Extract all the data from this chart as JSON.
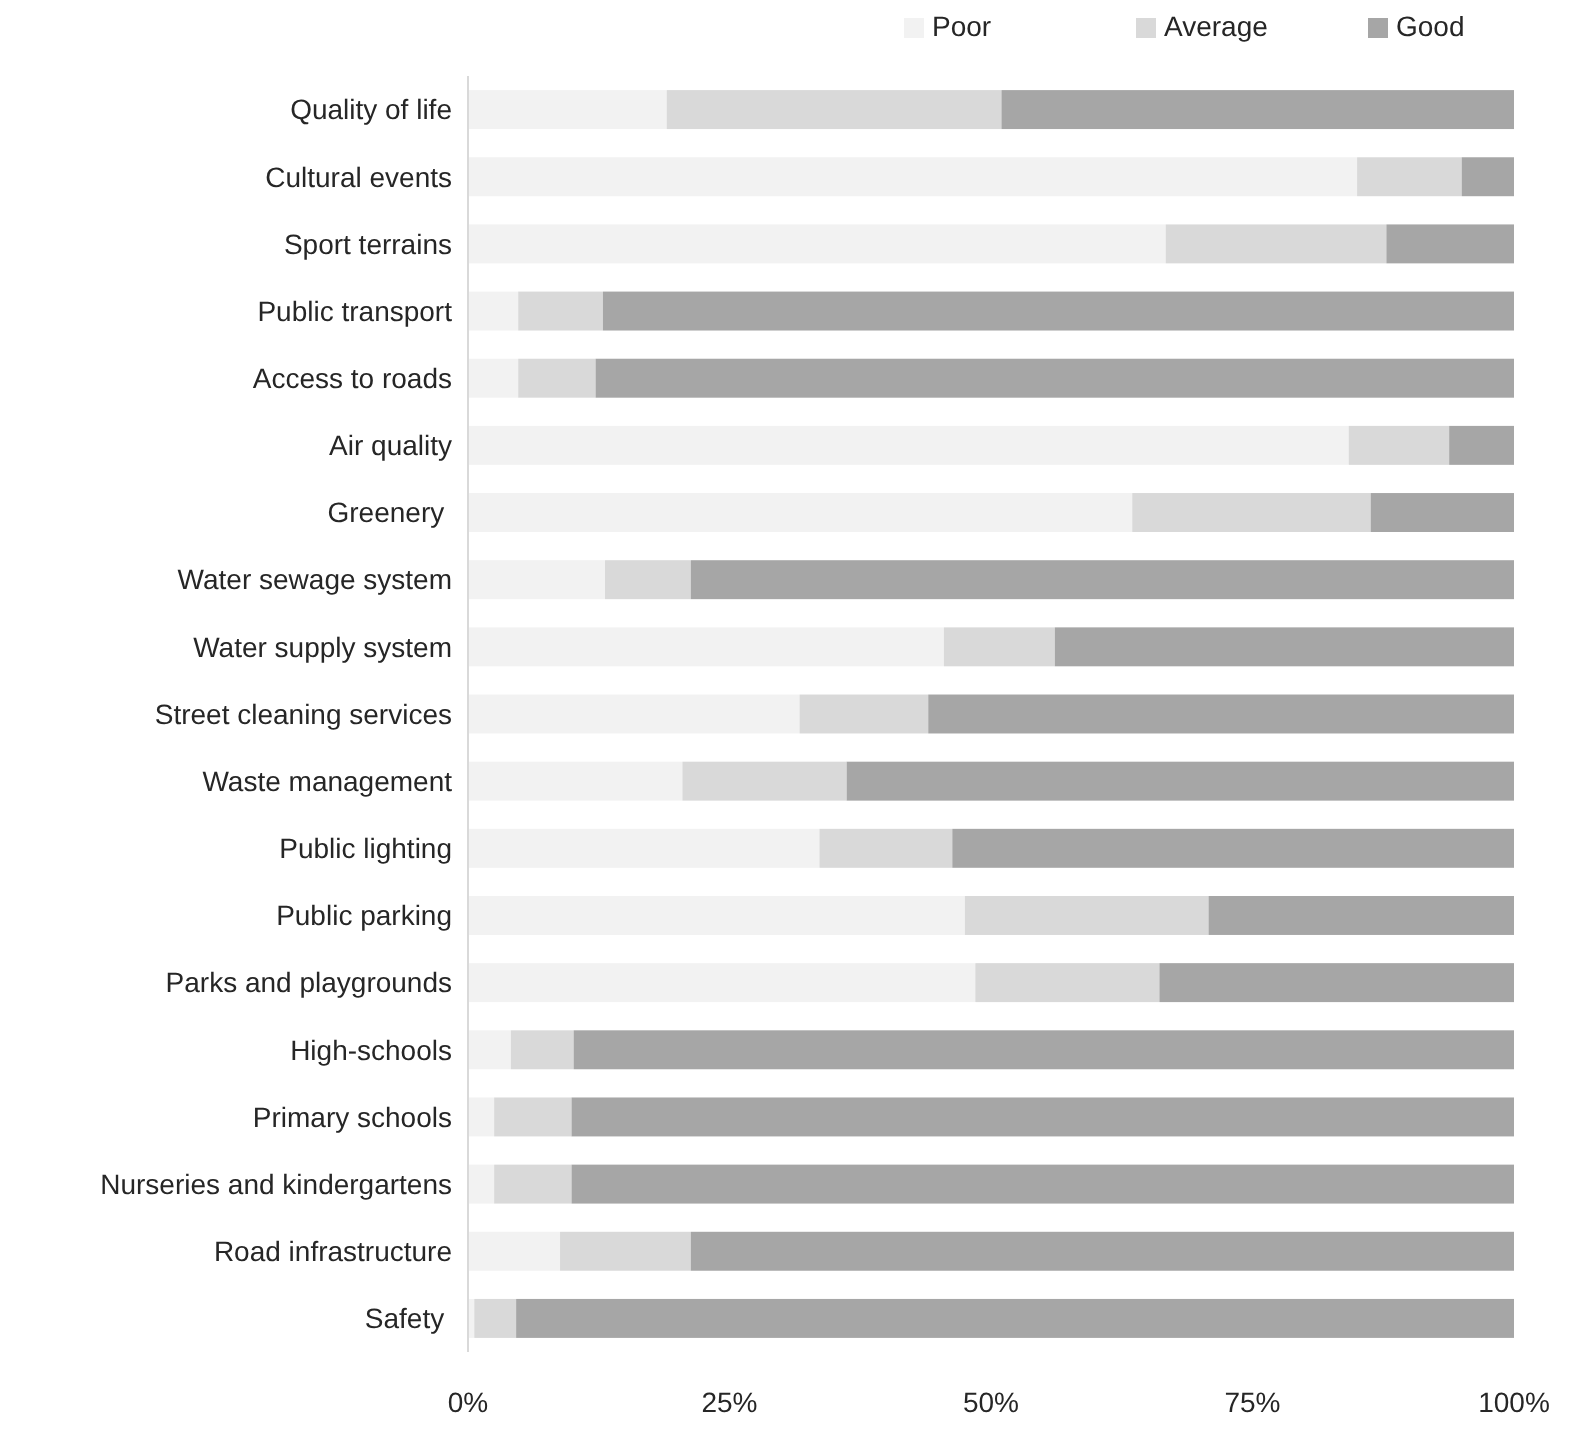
{
  "chart_data": {
    "type": "bar",
    "orientation": "horizontal",
    "stacked": true,
    "categories": [
      "Quality of life",
      "Cultural events",
      "Sport terrains",
      "Public transport",
      "Access to roads",
      "Air quality",
      "Greenery ",
      "Water sewage system",
      "Water supply system",
      "Street cleaning services",
      "Waste management",
      "Public lighting",
      "Public parking",
      "Parks and playgrounds",
      "High-schools",
      "Primary schools",
      "Nurseries and kindergartens",
      "Road infrastructure",
      "Safety "
    ],
    "series": [
      {
        "name": "Poor",
        "color": "#f2f2f2",
        "values": [
          19,
          85,
          66.7,
          4.8,
          4.8,
          84.2,
          63.5,
          13.1,
          45.5,
          31.7,
          20.5,
          33.6,
          47.5,
          48.5,
          4.1,
          2.5,
          2.5,
          8.8,
          0.6
        ]
      },
      {
        "name": "Average",
        "color": "#d9d9d9",
        "values": [
          32,
          10,
          21.1,
          8.1,
          7.4,
          9.6,
          22.8,
          8.2,
          10.6,
          12.3,
          15.7,
          12.7,
          23.3,
          17.6,
          6,
          7.4,
          7.4,
          12.5,
          4
        ]
      },
      {
        "name": "Good",
        "color": "#a6a6a6",
        "values": [
          49,
          5,
          12.2,
          87.1,
          87.8,
          6.2,
          13.7,
          78.7,
          43.9,
          56,
          63.8,
          53.7,
          29.2,
          33.9,
          89.9,
          90.1,
          90.1,
          78.7,
          95.4
        ]
      }
    ],
    "xlim": [
      0,
      100
    ],
    "xticks": [
      {
        "value": 0,
        "label": "0%"
      },
      {
        "value": 25,
        "label": "25%"
      },
      {
        "value": 50,
        "label": "50%"
      },
      {
        "value": 75,
        "label": "75%"
      },
      {
        "value": 100,
        "label": "100%"
      }
    ],
    "legend": "top",
    "grid": false
  }
}
